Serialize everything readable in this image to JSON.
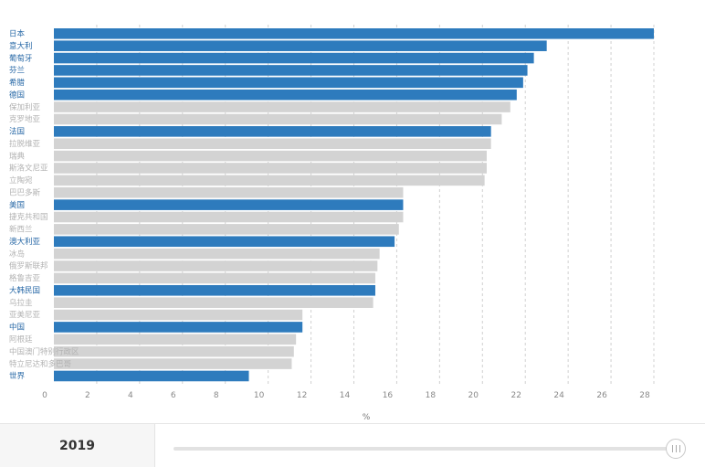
{
  "chart_data": {
    "type": "bar",
    "orientation": "horizontal",
    "xlabel": "%",
    "xlim": [
      0,
      28
    ],
    "x_ticks": [
      "0",
      "2",
      "4",
      "6",
      "8",
      "10",
      "12",
      "14",
      "16",
      "18",
      "20",
      "22",
      "24",
      "26",
      "28"
    ],
    "grid": "vertical-dashed",
    "categories": [
      "日本",
      "意大利",
      "葡萄牙",
      "芬兰",
      "希腊",
      "德国",
      "保加利亚",
      "克罗地亚",
      "法国",
      "拉脱维亚",
      "瑞典",
      "斯洛文尼亚",
      "立陶宛",
      "巴巴多斯",
      "美国",
      "捷克共和国",
      "新西兰",
      "澳大利亚",
      "冰岛",
      "俄罗斯联邦",
      "格鲁吉亚",
      "大韩民国",
      "乌拉圭",
      "亚美尼亚",
      "中国",
      "阿根廷",
      "中国澳门特别行政区",
      "特立尼达和多巴哥",
      "世界"
    ],
    "values": [
      28.0,
      23.0,
      22.4,
      22.1,
      21.9,
      21.6,
      21.3,
      20.9,
      20.4,
      20.4,
      20.2,
      20.2,
      20.1,
      16.3,
      16.3,
      16.3,
      16.1,
      15.9,
      15.2,
      15.1,
      15.0,
      15.0,
      14.9,
      11.6,
      11.6,
      11.3,
      11.2,
      11.1,
      9.1
    ],
    "highlighted": [
      true,
      true,
      true,
      true,
      true,
      true,
      false,
      false,
      true,
      false,
      false,
      false,
      false,
      false,
      true,
      false,
      false,
      true,
      false,
      false,
      false,
      true,
      false,
      false,
      true,
      false,
      false,
      false,
      true
    ]
  },
  "colors": {
    "highlight": "#2e7bbd",
    "muted": "#d3d3d3",
    "highlight_text": "#2a6aa7",
    "muted_text": "#b3b3b3"
  },
  "footer": {
    "year": "2019",
    "slider_position": 1.0
  }
}
